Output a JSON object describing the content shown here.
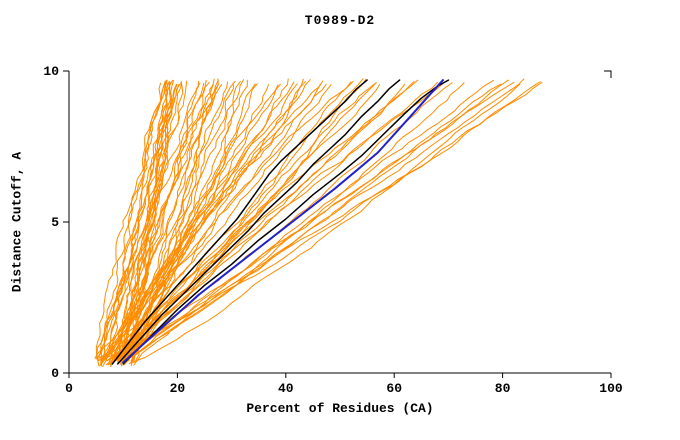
{
  "chart_data": {
    "type": "line",
    "title": "T0989-D2",
    "xlabel": "Percent of Residues (CA)",
    "ylabel": "Distance Cutoff, A",
    "xlim": [
      0,
      100
    ],
    "ylim": [
      0,
      10
    ],
    "xticks": [
      0,
      20,
      40,
      60,
      80,
      100
    ],
    "yticks": [
      0,
      5,
      10
    ],
    "grid": false,
    "legend": "none",
    "axis_color": "#000000",
    "ensemble": {
      "name": "server-model-curves",
      "color": "#FF8C00",
      "count": 72,
      "seed": 7,
      "x_start_range": [
        5,
        12
      ],
      "x_top_min": 17,
      "x_top_max": 90,
      "skew": 1.6,
      "y_bottom_range": [
        0.2,
        0.55
      ],
      "y_top_range": [
        9.55,
        9.75
      ],
      "jitter": 0.9,
      "width": 1
    },
    "series": [
      {
        "name": "highlight-black-1",
        "color": "#000000",
        "width": 1.5,
        "points": [
          [
            8,
            0.3
          ],
          [
            11,
            1
          ],
          [
            14,
            1.7
          ],
          [
            17,
            2.3
          ],
          [
            20,
            2.9
          ],
          [
            23,
            3.5
          ],
          [
            26,
            4.1
          ],
          [
            29,
            4.7
          ],
          [
            31,
            5.1
          ],
          [
            33,
            5.6
          ],
          [
            35,
            6.1
          ],
          [
            37,
            6.6
          ],
          [
            39,
            7.0
          ],
          [
            42,
            7.5
          ],
          [
            45,
            8.0
          ],
          [
            48,
            8.5
          ],
          [
            51,
            9.0
          ],
          [
            53,
            9.4
          ],
          [
            55,
            9.7
          ]
        ]
      },
      {
        "name": "highlight-black-2",
        "color": "#000000",
        "width": 1.5,
        "points": [
          [
            9,
            0.3
          ],
          [
            13,
            1.1
          ],
          [
            17,
            1.9
          ],
          [
            21,
            2.6
          ],
          [
            25,
            3.3
          ],
          [
            29,
            4.0
          ],
          [
            33,
            4.7
          ],
          [
            36,
            5.3
          ],
          [
            39,
            5.8
          ],
          [
            42,
            6.3
          ],
          [
            45,
            6.9
          ],
          [
            48,
            7.4
          ],
          [
            51,
            7.9
          ],
          [
            54,
            8.5
          ],
          [
            57,
            9.0
          ],
          [
            59,
            9.4
          ],
          [
            61,
            9.7
          ]
        ]
      },
      {
        "name": "highlight-black-3",
        "color": "#000000",
        "width": 1.5,
        "points": [
          [
            10,
            0.3
          ],
          [
            15,
            1.2
          ],
          [
            20,
            2.1
          ],
          [
            25,
            2.9
          ],
          [
            30,
            3.6
          ],
          [
            35,
            4.4
          ],
          [
            40,
            5.1
          ],
          [
            45,
            5.9
          ],
          [
            50,
            6.6
          ],
          [
            54,
            7.2
          ],
          [
            58,
            7.9
          ],
          [
            62,
            8.6
          ],
          [
            65,
            9.1
          ],
          [
            68,
            9.5
          ],
          [
            70,
            9.7
          ]
        ]
      },
      {
        "name": "highlight-blue",
        "color": "#2222CC",
        "width": 2,
        "points": [
          [
            10,
            0.35
          ],
          [
            14,
            1.0
          ],
          [
            19,
            1.8
          ],
          [
            24,
            2.6
          ],
          [
            29,
            3.3
          ],
          [
            34,
            4.0
          ],
          [
            39,
            4.7
          ],
          [
            44,
            5.4
          ],
          [
            49,
            6.1
          ],
          [
            53,
            6.7
          ],
          [
            57,
            7.3
          ],
          [
            60,
            7.9
          ],
          [
            63,
            8.5
          ],
          [
            66,
            9.1
          ],
          [
            68,
            9.5
          ],
          [
            69,
            9.7
          ]
        ]
      }
    ]
  }
}
